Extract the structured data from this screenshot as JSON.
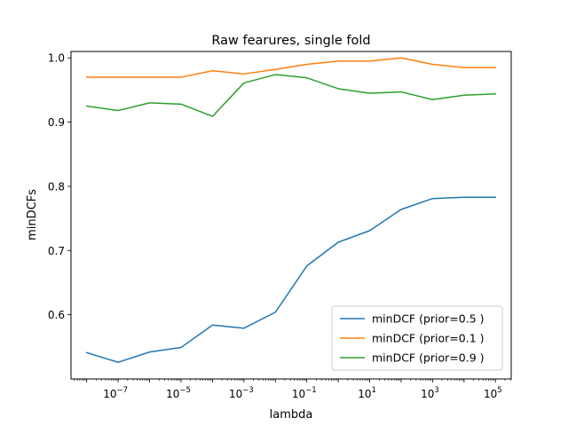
{
  "chart_data": {
    "type": "line",
    "title": "Raw fearures, single fold",
    "xlabel": "lambda",
    "ylabel": "minDCFs",
    "xscale": "log",
    "x": [
      1e-08,
      1e-07,
      1e-06,
      1e-05,
      0.0001,
      0.001,
      0.01,
      0.1,
      1,
      10,
      100,
      1000,
      10000,
      100000
    ],
    "xlim": [
      3.16e-09,
      316000.0
    ],
    "ylim": [
      0.5,
      1.01
    ],
    "xticks": [
      {
        "value": 1e-07,
        "base": "10",
        "exp": "−7"
      },
      {
        "value": 1e-05,
        "base": "10",
        "exp": "−5"
      },
      {
        "value": 0.001,
        "base": "10",
        "exp": "−3"
      },
      {
        "value": 0.1,
        "base": "10",
        "exp": "−1"
      },
      {
        "value": 10,
        "base": "10",
        "exp": "1"
      },
      {
        "value": 1000,
        "base": "10",
        "exp": "3"
      },
      {
        "value": 100000,
        "base": "10",
        "exp": "5"
      }
    ],
    "yticks": [
      {
        "value": 0.6,
        "label": "0.6"
      },
      {
        "value": 0.7,
        "label": "0.7"
      },
      {
        "value": 0.8,
        "label": "0.8"
      },
      {
        "value": 0.9,
        "label": "0.9"
      },
      {
        "value": 1.0,
        "label": "1.0"
      }
    ],
    "grid": false,
    "legend_position": "lower-right",
    "series": [
      {
        "name": "minDCF (prior=0.5 )",
        "color": "#1f77b4",
        "values": [
          0.541,
          0.526,
          0.542,
          0.549,
          0.584,
          0.579,
          0.604,
          0.676,
          0.713,
          0.731,
          0.764,
          0.781,
          0.783,
          0.783
        ]
      },
      {
        "name": "minDCF (prior=0.1 )",
        "color": "#ff7f0e",
        "values": [
          0.97,
          0.97,
          0.97,
          0.97,
          0.98,
          0.975,
          0.982,
          0.99,
          0.995,
          0.995,
          1.0,
          0.99,
          0.985,
          0.985
        ]
      },
      {
        "name": "minDCF (prior=0.9 )",
        "color": "#2ca02c",
        "values": [
          0.925,
          0.918,
          0.93,
          0.928,
          0.909,
          0.961,
          0.974,
          0.969,
          0.952,
          0.945,
          0.947,
          0.935,
          0.942,
          0.944
        ]
      }
    ]
  }
}
